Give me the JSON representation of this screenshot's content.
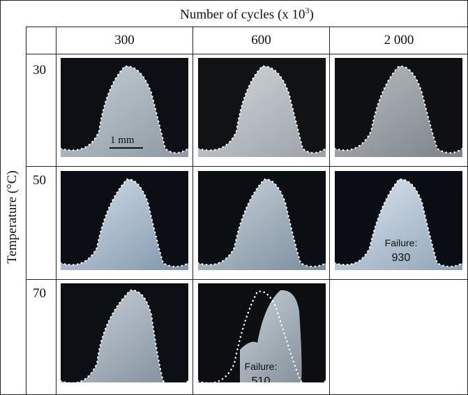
{
  "header": {
    "title": "Number of cycles (x 10",
    "title_exp": "3",
    "title_end": ")",
    "columns": [
      "300",
      "600",
      "2 000"
    ]
  },
  "rows": {
    "axis_label": "Temperature (°C)",
    "values": [
      "30",
      "50",
      "70"
    ]
  },
  "annotations": {
    "scale_bar": "1 mm",
    "failure_50_2000": {
      "label": "Failure:",
      "value": "930"
    },
    "failure_70_600": {
      "label": "Failure:",
      "value": "510"
    }
  },
  "colors": {
    "background_dark": "#0d0f14",
    "tooth_light": "#b9c3cc",
    "outline_dots": "#ffffff"
  }
}
